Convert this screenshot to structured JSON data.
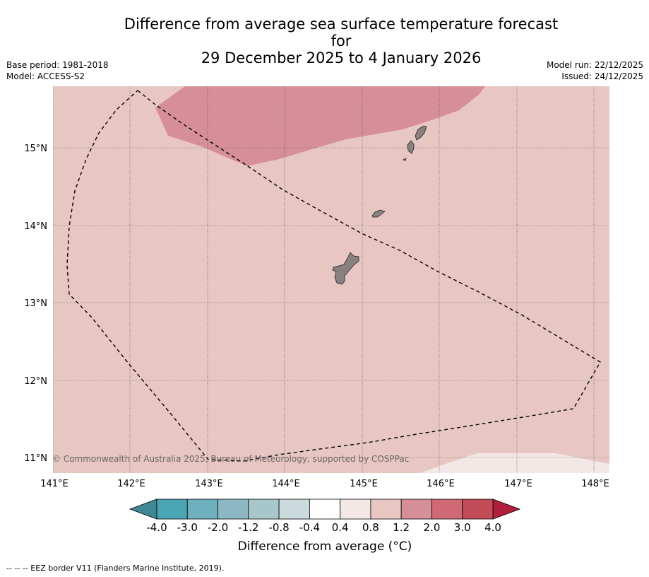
{
  "title": {
    "line1": "Difference from average sea surface temperature forecast for",
    "line2": "29 December 2025 to 4 January 2026"
  },
  "meta_left": {
    "base_period": "Base period: 1981-2018",
    "model": "Model: ACCESS-S2"
  },
  "meta_right": {
    "model_run": "Model run: 22/12/2025",
    "issued": "Issued: 24/12/2025"
  },
  "map": {
    "lat_ticks": [
      "15°N",
      "14°N",
      "13°N",
      "12°N",
      "11°N"
    ],
    "lon_ticks": [
      "141°E",
      "142°E",
      "143°E",
      "144°E",
      "145°E",
      "146°E",
      "147°E",
      "148°E"
    ],
    "copyright": "© Commonwealth of Australia 2025, Bureau of Meteorology, supported by COSPPac",
    "background_class_color": "#e8c7c3",
    "high_anomaly_color": "#d68f96",
    "low_anomaly_color": "#f3e8e6",
    "land_color": "#8a8080",
    "eez_label": "--  --  -- EEZ border V11 (Flanders Marine Institute, 2019)."
  },
  "colorbar": {
    "ticks": [
      "-4.0",
      "-3.0",
      "-2.0",
      "-1.2",
      "-0.8",
      "-0.4",
      "0.4",
      "0.8",
      "1.2",
      "2.0",
      "3.0",
      "4.0"
    ],
    "colors": [
      "#4aa5b4",
      "#6fb0bf",
      "#8db8c3",
      "#a8c7cb",
      "#cbdadd",
      "#ffffff",
      "#f3e8e6",
      "#e8c7c3",
      "#d68f96",
      "#cf6a74",
      "#c24c58"
    ],
    "under_color": "#3f8793",
    "over_color": "#b11f3a",
    "label": "Difference from average (°C)"
  }
}
